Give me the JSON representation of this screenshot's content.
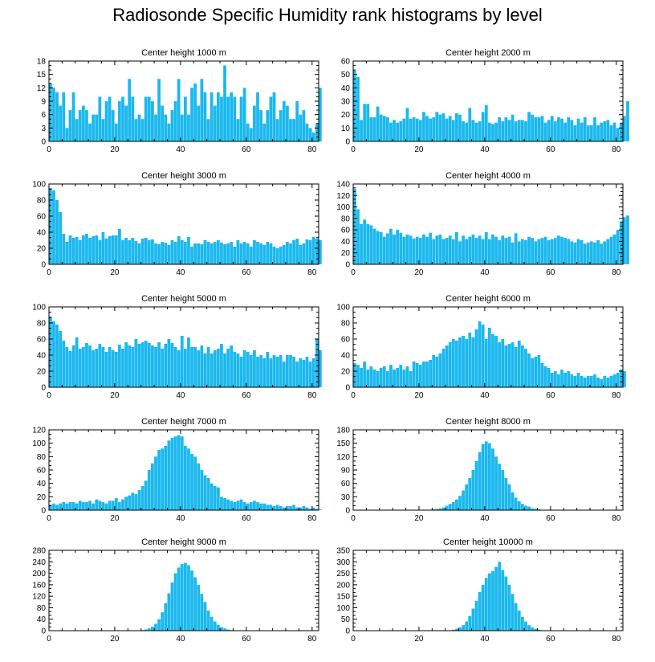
{
  "page": {
    "title": "Radiosonde Specific Humidity rank histograms by level"
  },
  "colors": {
    "bar": "#1ab8ee",
    "axis": "#000000",
    "background": "#ffffff"
  },
  "chart_data": [
    {
      "type": "bar",
      "title": "Center height 1000 m",
      "xlim": [
        0,
        82
      ],
      "ylim": [
        0,
        18
      ],
      "xticks": [
        0,
        20,
        40,
        60,
        80
      ],
      "yticks": [
        0,
        3,
        6,
        9,
        12,
        15,
        18
      ],
      "x_start": 0,
      "values": [
        13,
        12,
        11,
        8,
        11,
        3,
        7,
        11,
        5,
        7,
        8,
        7,
        4,
        6,
        6,
        10,
        5,
        9,
        10,
        7,
        4,
        9,
        10,
        8,
        14,
        10,
        5,
        6,
        5,
        10,
        10,
        9,
        6,
        14,
        8,
        6,
        4,
        7,
        9,
        14,
        6,
        10,
        6,
        12,
        13,
        8,
        14,
        11,
        5,
        11,
        8,
        11,
        10,
        17,
        10,
        11,
        10,
        5,
        10,
        12,
        4,
        3,
        8,
        11,
        7,
        4,
        7,
        10,
        11,
        5,
        7,
        9,
        8,
        5,
        5,
        9,
        6,
        7,
        4,
        3,
        2,
        4,
        12
      ]
    },
    {
      "type": "bar",
      "title": "Center height 2000 m",
      "xlim": [
        0,
        82
      ],
      "ylim": [
        0,
        60
      ],
      "xticks": [
        0,
        20,
        40,
        60,
        80
      ],
      "yticks": [
        0,
        10,
        20,
        30,
        40,
        50,
        60
      ],
      "x_start": 0,
      "values": [
        53,
        48,
        16,
        28,
        28,
        18,
        18,
        26,
        20,
        19,
        18,
        14,
        16,
        14,
        15,
        17,
        25,
        17,
        18,
        17,
        16,
        22,
        19,
        17,
        18,
        22,
        20,
        21,
        17,
        19,
        16,
        21,
        20,
        15,
        14,
        25,
        16,
        14,
        15,
        22,
        27,
        14,
        13,
        14,
        18,
        15,
        18,
        16,
        20,
        15,
        16,
        16,
        15,
        22,
        20,
        18,
        18,
        19,
        14,
        16,
        19,
        15,
        18,
        17,
        14,
        18,
        16,
        12,
        17,
        14,
        18,
        12,
        12,
        18,
        12,
        14,
        15,
        16,
        12,
        14,
        10,
        14,
        19,
        30
      ]
    },
    {
      "type": "bar",
      "title": "Center height 3000 m",
      "xlim": [
        0,
        82
      ],
      "ylim": [
        0,
        100
      ],
      "xticks": [
        0,
        20,
        40,
        60,
        80
      ],
      "yticks": [
        0,
        20,
        40,
        60,
        80,
        100
      ],
      "x_start": 0,
      "values": [
        95,
        92,
        80,
        65,
        38,
        28,
        36,
        33,
        34,
        30,
        36,
        38,
        33,
        35,
        36,
        30,
        40,
        32,
        35,
        36,
        36,
        44,
        30,
        33,
        30,
        33,
        29,
        26,
        32,
        33,
        30,
        31,
        26,
        25,
        28,
        27,
        24,
        30,
        28,
        35,
        30,
        28,
        34,
        22,
        26,
        26,
        25,
        30,
        28,
        26,
        28,
        30,
        27,
        25,
        26,
        28,
        22,
        30,
        26,
        28,
        26,
        22,
        30,
        28,
        26,
        24,
        28,
        26,
        22,
        20,
        22,
        24,
        28,
        26,
        30,
        32,
        24,
        26,
        31,
        30,
        34,
        32,
        30
      ]
    },
    {
      "type": "bar",
      "title": "Center height 4000 m",
      "xlim": [
        0,
        82
      ],
      "ylim": [
        0,
        140
      ],
      "xticks": [
        0,
        20,
        40,
        60,
        80
      ],
      "yticks": [
        0,
        20,
        40,
        60,
        80,
        100,
        120,
        140
      ],
      "x_start": 0,
      "values": [
        132,
        96,
        70,
        78,
        70,
        68,
        62,
        58,
        56,
        48,
        54,
        62,
        52,
        60,
        55,
        48,
        52,
        50,
        45,
        48,
        46,
        52,
        48,
        55,
        44,
        50,
        52,
        44,
        46,
        50,
        44,
        56,
        40,
        50,
        44,
        48,
        52,
        46,
        50,
        44,
        56,
        44,
        52,
        48,
        42,
        50,
        46,
        48,
        38,
        54,
        40,
        44,
        42,
        48,
        46,
        40,
        44,
        46,
        48,
        42,
        44,
        46,
        50,
        48,
        46,
        44,
        40,
        38,
        44,
        42,
        36,
        38,
        40,
        38,
        42,
        36,
        40,
        44,
        48,
        52,
        60,
        75,
        82,
        85
      ]
    },
    {
      "type": "bar",
      "title": "Center height 5000 m",
      "xlim": [
        0,
        82
      ],
      "ylim": [
        0,
        100
      ],
      "xticks": [
        0,
        20,
        40,
        60,
        80
      ],
      "yticks": [
        0,
        20,
        40,
        60,
        80,
        100
      ],
      "x_start": 0,
      "values": [
        88,
        82,
        78,
        70,
        58,
        50,
        45,
        52,
        62,
        48,
        50,
        55,
        52,
        46,
        48,
        54,
        50,
        44,
        50,
        46,
        44,
        53,
        48,
        56,
        52,
        50,
        60,
        54,
        56,
        58,
        55,
        52,
        50,
        56,
        48,
        54,
        60,
        55,
        50,
        46,
        64,
        48,
        62,
        50,
        50,
        46,
        52,
        42,
        50,
        42,
        46,
        48,
        54,
        42,
        48,
        52,
        44,
        42,
        38,
        46,
        44,
        40,
        46,
        38,
        40,
        36,
        44,
        36,
        40,
        38,
        40,
        32,
        40,
        40,
        38,
        32,
        36,
        34,
        38,
        32,
        36,
        60,
        46
      ]
    },
    {
      "type": "bar",
      "title": "Center height 6000 m",
      "xlim": [
        0,
        82
      ],
      "ylim": [
        0,
        100
      ],
      "xticks": [
        0,
        20,
        40,
        60,
        80
      ],
      "yticks": [
        0,
        20,
        40,
        60,
        80,
        100
      ],
      "x_start": 0,
      "values": [
        30,
        28,
        24,
        32,
        22,
        26,
        22,
        20,
        24,
        26,
        20,
        28,
        22,
        24,
        28,
        22,
        26,
        20,
        32,
        30,
        28,
        32,
        32,
        34,
        40,
        38,
        42,
        48,
        52,
        56,
        60,
        58,
        62,
        64,
        60,
        68,
        62,
        72,
        82,
        78,
        60,
        74,
        66,
        64,
        56,
        60,
        52,
        54,
        56,
        50,
        58,
        52,
        48,
        42,
        36,
        38,
        40,
        30,
        26,
        24,
        18,
        20,
        16,
        22,
        18,
        20,
        16,
        14,
        18,
        14,
        12,
        14,
        14,
        16,
        12,
        10,
        14,
        12,
        14,
        16,
        18,
        22,
        20
      ]
    },
    {
      "type": "bar",
      "title": "Center height 7000 m",
      "xlim": [
        0,
        82
      ],
      "ylim": [
        0,
        120
      ],
      "xticks": [
        0,
        20,
        40,
        60,
        80
      ],
      "yticks": [
        0,
        20,
        40,
        60,
        80,
        100,
        120
      ],
      "x_start": 0,
      "values": [
        8,
        10,
        8,
        10,
        12,
        10,
        12,
        12,
        10,
        14,
        12,
        12,
        14,
        10,
        16,
        14,
        12,
        10,
        14,
        14,
        18,
        12,
        16,
        20,
        22,
        26,
        24,
        30,
        36,
        44,
        60,
        70,
        80,
        90,
        92,
        96,
        104,
        108,
        110,
        112,
        110,
        96,
        92,
        84,
        80,
        70,
        60,
        52,
        48,
        40,
        36,
        34,
        20,
        18,
        16,
        14,
        12,
        14,
        16,
        12,
        10,
        12,
        14,
        12,
        10,
        10,
        8,
        8,
        6,
        8,
        6,
        4,
        6,
        6,
        8,
        4,
        4,
        6,
        4,
        2,
        4,
        2,
        1
      ]
    },
    {
      "type": "bar",
      "title": "Center height 8000 m",
      "xlim": [
        0,
        82
      ],
      "ylim": [
        0,
        180
      ],
      "xticks": [
        0,
        20,
        40,
        60,
        80
      ],
      "yticks": [
        0,
        30,
        60,
        90,
        120,
        150,
        180
      ],
      "x_start": 0,
      "values": [
        0,
        0,
        0,
        0,
        0,
        0,
        0,
        0,
        0,
        0,
        0,
        0,
        0,
        0,
        0,
        0,
        0,
        0,
        0,
        0,
        0,
        1,
        0,
        1,
        2,
        3,
        4,
        6,
        10,
        14,
        18,
        24,
        32,
        44,
        58,
        72,
        90,
        110,
        130,
        148,
        154,
        150,
        138,
        120,
        104,
        90,
        72,
        58,
        40,
        28,
        20,
        14,
        10,
        8,
        4,
        3,
        2,
        1,
        1,
        1,
        0,
        0,
        0,
        0,
        0,
        0,
        0,
        0,
        0,
        0,
        0,
        0,
        0,
        0,
        0,
        0,
        0,
        0,
        0,
        0,
        0,
        0,
        0
      ]
    },
    {
      "type": "bar",
      "title": "Center height 9000 m",
      "xlim": [
        0,
        82
      ],
      "ylim": [
        0,
        280
      ],
      "xticks": [
        0,
        20,
        40,
        60,
        80
      ],
      "yticks": [
        0,
        40,
        80,
        120,
        160,
        200,
        240,
        280
      ],
      "x_start": 0,
      "values": [
        0,
        0,
        0,
        0,
        0,
        0,
        0,
        0,
        0,
        0,
        0,
        0,
        0,
        0,
        0,
        0,
        0,
        0,
        0,
        0,
        0,
        0,
        0,
        0,
        0,
        0,
        0,
        1,
        2,
        4,
        8,
        14,
        24,
        40,
        64,
        96,
        130,
        168,
        200,
        220,
        232,
        236,
        228,
        210,
        186,
        160,
        128,
        100,
        70,
        48,
        32,
        20,
        12,
        8,
        4,
        2,
        1,
        1,
        0,
        0,
        0,
        0,
        0,
        0,
        0,
        0,
        0,
        0,
        0,
        0,
        0,
        0,
        0,
        0,
        0,
        0,
        0,
        0,
        0,
        0,
        0,
        0,
        0
      ]
    },
    {
      "type": "bar",
      "title": "Center height 10000 m",
      "xlim": [
        0,
        82
      ],
      "ylim": [
        0,
        350
      ],
      "xticks": [
        0,
        20,
        40,
        60,
        80
      ],
      "yticks": [
        0,
        50,
        100,
        150,
        200,
        250,
        300,
        350
      ],
      "x_start": 0,
      "values": [
        0,
        0,
        0,
        0,
        0,
        0,
        0,
        0,
        0,
        0,
        0,
        0,
        0,
        0,
        0,
        0,
        0,
        0,
        0,
        0,
        0,
        0,
        0,
        0,
        0,
        0,
        0,
        0,
        1,
        2,
        4,
        8,
        14,
        24,
        40,
        64,
        96,
        130,
        168,
        200,
        230,
        250,
        260,
        278,
        300,
        264,
        236,
        200,
        160,
        120,
        88,
        60,
        40,
        24,
        14,
        8,
        4,
        2,
        1,
        1,
        0,
        0,
        0,
        0,
        0,
        0,
        0,
        0,
        0,
        0,
        0,
        0,
        0,
        0,
        0,
        0,
        0,
        0,
        0,
        0,
        0,
        0,
        0
      ]
    }
  ]
}
